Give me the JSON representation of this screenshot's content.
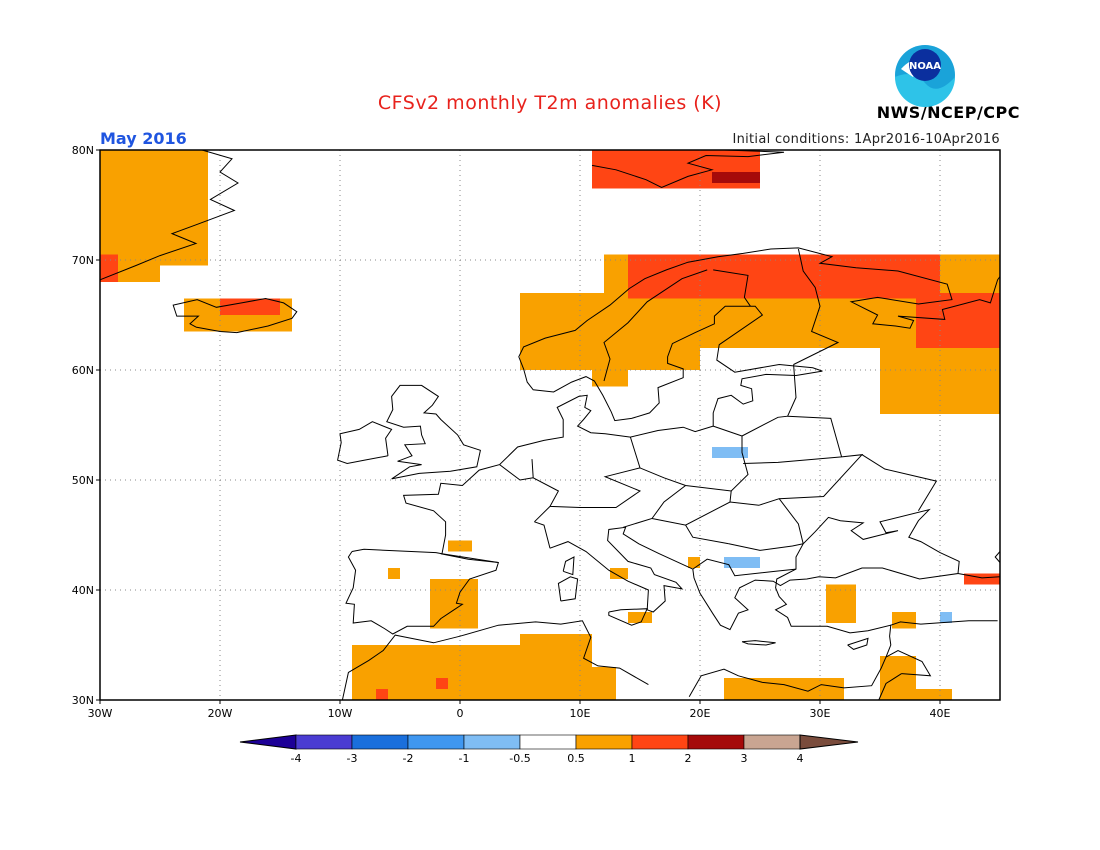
{
  "header": {
    "title": "CFSv2 monthly T2m anomalies (K)",
    "valid_month": "May 2016",
    "initial_conditions": "Initial conditions: 1Apr2016-10Apr2016",
    "agency": "NWS/NCEP/CPC",
    "logo_text": "NOAA"
  },
  "map": {
    "lon_range": [
      -30,
      45
    ],
    "lat_range": [
      30,
      80
    ],
    "lat_ticks": [
      {
        "value": 30,
        "label": "30N"
      },
      {
        "value": 40,
        "label": "40N"
      },
      {
        "value": 50,
        "label": "50N"
      },
      {
        "value": 60,
        "label": "60N"
      },
      {
        "value": 70,
        "label": "70N"
      },
      {
        "value": 80,
        "label": "80N"
      }
    ],
    "lon_ticks": [
      {
        "value": -30,
        "label": "30W"
      },
      {
        "value": -20,
        "label": "20W"
      },
      {
        "value": -10,
        "label": "10W"
      },
      {
        "value": 0,
        "label": "0"
      },
      {
        "value": 10,
        "label": "10E"
      },
      {
        "value": 20,
        "label": "20E"
      },
      {
        "value": 30,
        "label": "30E"
      },
      {
        "value": 40,
        "label": "40E"
      }
    ],
    "grid": "dotted",
    "anomaly_regions": [
      {
        "level": "0.5-1",
        "color": "#f9a100",
        "lon": [
          -30,
          -21
        ],
        "lat": [
          69.5,
          80
        ]
      },
      {
        "level": "0.5-1",
        "color": "#f9a100",
        "lon": [
          -30,
          -25
        ],
        "lat": [
          68,
          70.5
        ]
      },
      {
        "level": "0.5-1",
        "color": "#f9a100",
        "lon": [
          -23,
          -14
        ],
        "lat": [
          63.5,
          66.5
        ]
      },
      {
        "level": "1-2",
        "color": "#ff4514",
        "lon": [
          -20,
          -15
        ],
        "lat": [
          65,
          66.5
        ]
      },
      {
        "level": "1-2",
        "color": "#ff4514",
        "lon": [
          -30,
          -28.5
        ],
        "lat": [
          68,
          70.5
        ]
      },
      {
        "level": "1-2",
        "color": "#ff4514",
        "lon": [
          11,
          25
        ],
        "lat": [
          76.5,
          80
        ]
      },
      {
        "level": "2-3",
        "color": "#a50a0a",
        "lon": [
          21,
          25
        ],
        "lat": [
          77,
          78
        ]
      },
      {
        "level": "0.5-1",
        "color": "#f9a100",
        "lon": [
          5,
          20
        ],
        "lat": [
          60,
          67
        ]
      },
      {
        "level": "0.5-1",
        "color": "#f9a100",
        "lon": [
          12,
          45
        ],
        "lat": [
          62,
          70.5
        ]
      },
      {
        "level": "0.5-1",
        "color": "#f9a100",
        "lon": [
          35,
          45
        ],
        "lat": [
          56,
          62
        ]
      },
      {
        "level": "1-2",
        "color": "#ff4514",
        "lon": [
          14,
          40
        ],
        "lat": [
          66.5,
          70.5
        ]
      },
      {
        "level": "1-2",
        "color": "#ff4514",
        "lon": [
          38,
          45
        ],
        "lat": [
          62,
          67
        ]
      },
      {
        "level": "0.5-1",
        "color": "#f9a100",
        "lon": [
          11,
          14
        ],
        "lat": [
          58.5,
          60
        ]
      },
      {
        "level": "-1--0.5",
        "color": "#7fbdf4",
        "lon": [
          21,
          24
        ],
        "lat": [
          52,
          53
        ]
      },
      {
        "level": "-1--0.5",
        "color": "#7fbdf4",
        "lon": [
          22,
          25
        ],
        "lat": [
          42,
          43
        ]
      },
      {
        "level": "0.5-1",
        "color": "#f9a100",
        "lon": [
          -1,
          1
        ],
        "lat": [
          43.5,
          44.5
        ]
      },
      {
        "level": "0.5-1",
        "color": "#f9a100",
        "lon": [
          -6,
          -5
        ],
        "lat": [
          41,
          42
        ]
      },
      {
        "level": "0.5-1",
        "color": "#f9a100",
        "lon": [
          -2.5,
          1.5
        ],
        "lat": [
          36.5,
          41
        ]
      },
      {
        "level": "0.5-1",
        "color": "#f9a100",
        "lon": [
          12.5,
          14
        ],
        "lat": [
          41,
          42
        ]
      },
      {
        "level": "0.5-1",
        "color": "#f9a100",
        "lon": [
          14,
          16
        ],
        "lat": [
          37,
          38
        ]
      },
      {
        "level": "0.5-1",
        "color": "#f9a100",
        "lon": [
          19,
          20
        ],
        "lat": [
          42,
          43
        ]
      },
      {
        "level": "0.5-1",
        "color": "#f9a100",
        "lon": [
          30.5,
          33
        ],
        "lat": [
          37,
          40.5
        ]
      },
      {
        "level": "1-2",
        "color": "#ff4514",
        "lon": [
          42,
          45
        ],
        "lat": [
          40.5,
          41.5
        ]
      },
      {
        "level": "0.5-1",
        "color": "#f9a100",
        "lon": [
          36,
          38
        ],
        "lat": [
          36.5,
          38
        ]
      },
      {
        "level": "-1--0.5",
        "color": "#7fbdf4",
        "lon": [
          40,
          41
        ],
        "lat": [
          37,
          38
        ]
      },
      {
        "level": "0.5-1",
        "color": "#f9a100",
        "lon": [
          -9,
          11
        ],
        "lat": [
          30,
          35
        ]
      },
      {
        "level": "0.5-1",
        "color": "#f9a100",
        "lon": [
          5,
          11
        ],
        "lat": [
          34.5,
          36
        ]
      },
      {
        "level": "0.5-1",
        "color": "#f9a100",
        "lon": [
          10,
          13
        ],
        "lat": [
          30,
          33
        ]
      },
      {
        "level": "0.5-1",
        "color": "#f9a100",
        "lon": [
          22,
          32
        ],
        "lat": [
          30,
          32
        ]
      },
      {
        "level": "0.5-1",
        "color": "#f9a100",
        "lon": [
          35,
          38
        ],
        "lat": [
          30,
          34
        ]
      },
      {
        "level": "0.5-1",
        "color": "#f9a100",
        "lon": [
          37,
          41
        ],
        "lat": [
          30,
          31
        ]
      },
      {
        "level": "1-2",
        "color": "#ff4514",
        "lon": [
          -2,
          -1
        ],
        "lat": [
          31,
          32
        ]
      },
      {
        "level": "1-2",
        "color": "#ff4514",
        "lon": [
          -7,
          -6
        ],
        "lat": [
          30,
          31
        ]
      }
    ]
  },
  "colorbar": {
    "tick_labels": [
      "-4",
      "-3",
      "-2",
      "-1",
      "-0.5",
      "0.5",
      "1",
      "2",
      "3",
      "4"
    ],
    "colors": [
      "#1d0097",
      "#4a3cd2",
      "#1a6fdc",
      "#3f97f0",
      "#7fbdf4",
      "#ffffff",
      "#f9a100",
      "#ff4514",
      "#a50a0a",
      "#c9a592",
      "#7a4c3c"
    ]
  }
}
